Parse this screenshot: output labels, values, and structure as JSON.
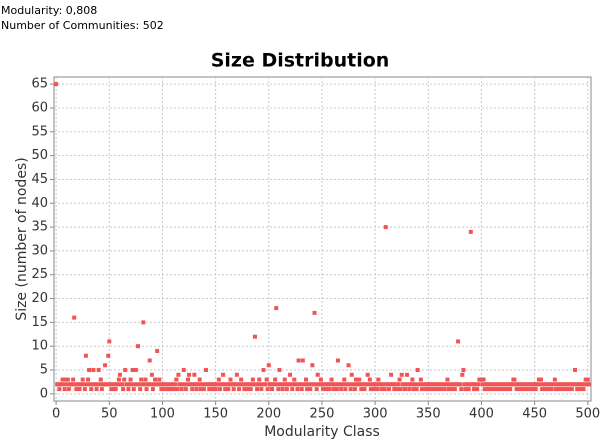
{
  "report": {
    "modularity": "Modularity: 0,808",
    "communities": "Number of Communities: 502"
  },
  "chart_data": {
    "type": "scatter",
    "title": "Size Distribution",
    "x_label": "Modularity Class",
    "y_label": "Size (number of nodes)",
    "color": "#f05454",
    "grid": true,
    "xlim": [
      -2,
      503
    ],
    "ylim": [
      -1.5,
      66.5
    ],
    "xticks": [
      0,
      50,
      100,
      150,
      200,
      250,
      300,
      350,
      400,
      450,
      500
    ],
    "yticks": [
      0,
      5,
      10,
      15,
      20,
      25,
      30,
      35,
      40,
      45,
      50,
      55,
      60,
      65
    ],
    "x": [
      0,
      1,
      2,
      3,
      4,
      5,
      6,
      7,
      8,
      9,
      10,
      11,
      12,
      13,
      14,
      15,
      16,
      17,
      18,
      19,
      20,
      21,
      22,
      23,
      24,
      25,
      26,
      27,
      28,
      29,
      30,
      31,
      32,
      33,
      34,
      35,
      36,
      37,
      38,
      39,
      40,
      41,
      42,
      43,
      44,
      45,
      46,
      47,
      48,
      49,
      50,
      51,
      52,
      53,
      54,
      55,
      56,
      57,
      58,
      59,
      60,
      61,
      62,
      63,
      64,
      65,
      66,
      67,
      68,
      69,
      70,
      71,
      72,
      73,
      74,
      75,
      76,
      77,
      78,
      79,
      80,
      81,
      82,
      83,
      84,
      85,
      86,
      87,
      88,
      89,
      90,
      91,
      92,
      93,
      94,
      95,
      96,
      97,
      98,
      99,
      100,
      101,
      102,
      103,
      104,
      105,
      106,
      107,
      108,
      109,
      110,
      111,
      112,
      113,
      114,
      115,
      116,
      117,
      118,
      119,
      120,
      121,
      122,
      123,
      124,
      125,
      126,
      127,
      128,
      129,
      130,
      131,
      132,
      133,
      134,
      135,
      136,
      137,
      138,
      139,
      140,
      141,
      142,
      143,
      144,
      145,
      146,
      147,
      148,
      149,
      150,
      151,
      152,
      153,
      154,
      155,
      156,
      157,
      158,
      159,
      160,
      161,
      162,
      163,
      164,
      165,
      166,
      167,
      168,
      169,
      170,
      171,
      172,
      173,
      174,
      175,
      176,
      177,
      178,
      179,
      180,
      181,
      182,
      183,
      184,
      185,
      186,
      187,
      188,
      189,
      190,
      191,
      192,
      193,
      194,
      195,
      196,
      197,
      198,
      199,
      200,
      201,
      202,
      203,
      204,
      205,
      206,
      207,
      208,
      209,
      210,
      211,
      212,
      213,
      214,
      215,
      216,
      217,
      218,
      219,
      220,
      221,
      222,
      223,
      224,
      225,
      226,
      227,
      228,
      229,
      230,
      231,
      232,
      233,
      234,
      235,
      236,
      237,
      238,
      239,
      240,
      241,
      242,
      243,
      244,
      245,
      246,
      247,
      248,
      249,
      250,
      251,
      252,
      253,
      254,
      255,
      256,
      257,
      258,
      259,
      260,
      261,
      262,
      263,
      264,
      265,
      266,
      267,
      268,
      269,
      270,
      271,
      272,
      273,
      274,
      275,
      276,
      277,
      278,
      279,
      280,
      281,
      282,
      283,
      284,
      285,
      286,
      287,
      288,
      289,
      290,
      291,
      292,
      293,
      294,
      295,
      296,
      297,
      298,
      299,
      300,
      301,
      302,
      303,
      304,
      305,
      306,
      307,
      308,
      309,
      310,
      311,
      312,
      313,
      314,
      315,
      316,
      317,
      318,
      319,
      320,
      321,
      322,
      323,
      324,
      325,
      326,
      327,
      328,
      329,
      330,
      331,
      332,
      333,
      334,
      335,
      336,
      337,
      338,
      339,
      340,
      341,
      342,
      343,
      344,
      345,
      346,
      347,
      348,
      349,
      350,
      351,
      352,
      353,
      354,
      355,
      356,
      357,
      358,
      359,
      360,
      361,
      362,
      363,
      364,
      365,
      366,
      367,
      368,
      369,
      370,
      371,
      372,
      373,
      374,
      375,
      376,
      377,
      378,
      379,
      380,
      381,
      382,
      383,
      384,
      385,
      386,
      387,
      388,
      389,
      390,
      391,
      392,
      393,
      394,
      395,
      396,
      397,
      398,
      399,
      400,
      401,
      402,
      403,
      404,
      405,
      406,
      407,
      408,
      409,
      410,
      411,
      412,
      413,
      414,
      415,
      416,
      417,
      418,
      419,
      420,
      421,
      422,
      423,
      424,
      425,
      426,
      427,
      428,
      429,
      430,
      431,
      432,
      433,
      434,
      435,
      436,
      437,
      438,
      439,
      440,
      441,
      442,
      443,
      444,
      445,
      446,
      447,
      448,
      449,
      450,
      451,
      452,
      453,
      454,
      455,
      456,
      457,
      458,
      459,
      460,
      461,
      462,
      463,
      464,
      465,
      466,
      467,
      468,
      469,
      470,
      471,
      472,
      473,
      474,
      475,
      476,
      477,
      478,
      479,
      480,
      481,
      482,
      483,
      484,
      485,
      486,
      487,
      488,
      489,
      490,
      491,
      492,
      493,
      494,
      495,
      496,
      497,
      498,
      499,
      500,
      501
    ],
    "values": [
      65,
      2,
      2,
      1,
      2,
      2,
      3,
      2,
      1,
      3,
      2,
      3,
      1,
      2,
      2,
      2,
      3,
      16,
      2,
      1,
      2,
      2,
      1,
      2,
      2,
      3,
      2,
      1,
      8,
      2,
      3,
      5,
      2,
      1,
      2,
      5,
      2,
      2,
      1,
      2,
      5,
      2,
      3,
      1,
      2,
      2,
      6,
      2,
      2,
      8,
      11,
      2,
      1,
      2,
      1,
      2,
      1,
      2,
      2,
      3,
      4,
      2,
      2,
      1,
      3,
      5,
      2,
      2,
      1,
      2,
      3,
      2,
      5,
      1,
      2,
      5,
      2,
      10,
      2,
      1,
      3,
      2,
      15,
      2,
      3,
      1,
      2,
      2,
      7,
      2,
      4,
      1,
      2,
      3,
      2,
      9,
      2,
      3,
      2,
      1,
      2,
      1,
      2,
      2,
      1,
      2,
      1,
      2,
      1,
      2,
      2,
      1,
      2,
      3,
      1,
      4,
      2,
      2,
      1,
      2,
      5,
      2,
      1,
      2,
      3,
      4,
      2,
      2,
      1,
      2,
      4,
      2,
      1,
      2,
      2,
      3,
      1,
      2,
      2,
      1,
      2,
      5,
      2,
      2,
      1,
      2,
      2,
      1,
      2,
      2,
      1,
      2,
      2,
      3,
      1,
      2,
      2,
      4,
      2,
      1,
      2,
      2,
      1,
      2,
      3,
      2,
      2,
      1,
      2,
      2,
      4,
      2,
      1,
      2,
      3,
      2,
      2,
      1,
      2,
      2,
      1,
      2,
      2,
      1,
      2,
      3,
      2,
      12,
      2,
      1,
      2,
      3,
      2,
      1,
      2,
      5,
      2,
      2,
      3,
      1,
      6,
      2,
      2,
      1,
      2,
      2,
      3,
      18,
      2,
      1,
      5,
      2,
      2,
      1,
      2,
      3,
      2,
      1,
      2,
      2,
      4,
      2,
      1,
      2,
      3,
      2,
      2,
      1,
      7,
      2,
      2,
      1,
      7,
      2,
      2,
      3,
      1,
      2,
      2,
      1,
      2,
      6,
      2,
      17,
      2,
      1,
      4,
      2,
      2,
      3,
      2,
      1,
      2,
      2,
      1,
      2,
      2,
      1,
      2,
      3,
      2,
      1,
      2,
      2,
      1,
      7,
      2,
      2,
      1,
      2,
      2,
      3,
      1,
      2,
      2,
      6,
      2,
      1,
      4,
      2,
      2,
      1,
      3,
      2,
      2,
      3,
      2,
      1,
      2,
      2,
      1,
      2,
      2,
      4,
      2,
      3,
      1,
      2,
      2,
      1,
      2,
      2,
      1,
      3,
      2,
      2,
      1,
      2,
      2,
      1,
      35,
      2,
      2,
      1,
      2,
      4,
      2,
      2,
      1,
      2,
      2,
      1,
      2,
      3,
      1,
      4,
      2,
      2,
      1,
      2,
      4,
      2,
      1,
      2,
      2,
      3,
      1,
      2,
      2,
      1,
      5,
      2,
      2,
      3,
      1,
      2,
      2,
      1,
      2,
      2,
      1,
      2,
      2,
      1,
      2,
      2,
      1,
      2,
      2,
      1,
      2,
      2,
      1,
      2,
      2,
      1,
      2,
      2,
      3,
      1,
      2,
      2,
      1,
      2,
      2,
      1,
      2,
      2,
      11,
      2,
      2,
      1,
      4,
      5,
      2,
      1,
      2,
      2,
      1,
      2,
      34,
      2,
      2,
      1,
      2,
      2,
      1,
      2,
      3,
      3,
      3,
      2,
      3,
      1,
      2,
      2,
      1,
      2,
      2,
      1,
      2,
      2,
      1,
      2,
      2,
      1,
      2,
      2,
      1,
      2,
      2,
      1,
      2,
      2,
      1,
      2,
      2,
      1,
      2,
      2,
      3,
      3,
      2,
      1,
      2,
      2,
      1,
      2,
      2,
      1,
      2,
      2,
      1,
      2,
      2,
      1,
      2,
      2,
      1,
      2,
      2,
      1,
      2,
      2,
      3,
      2,
      3,
      1,
      2,
      2,
      1,
      2,
      2,
      1,
      2,
      2,
      1,
      2,
      2,
      3,
      1,
      2,
      2,
      1,
      2,
      2,
      1,
      2,
      2,
      1,
      2,
      2,
      1,
      2,
      2,
      1,
      2,
      2,
      5,
      2,
      1,
      2,
      2,
      1,
      2,
      2,
      1,
      2,
      3,
      2,
      3,
      2
    ]
  }
}
